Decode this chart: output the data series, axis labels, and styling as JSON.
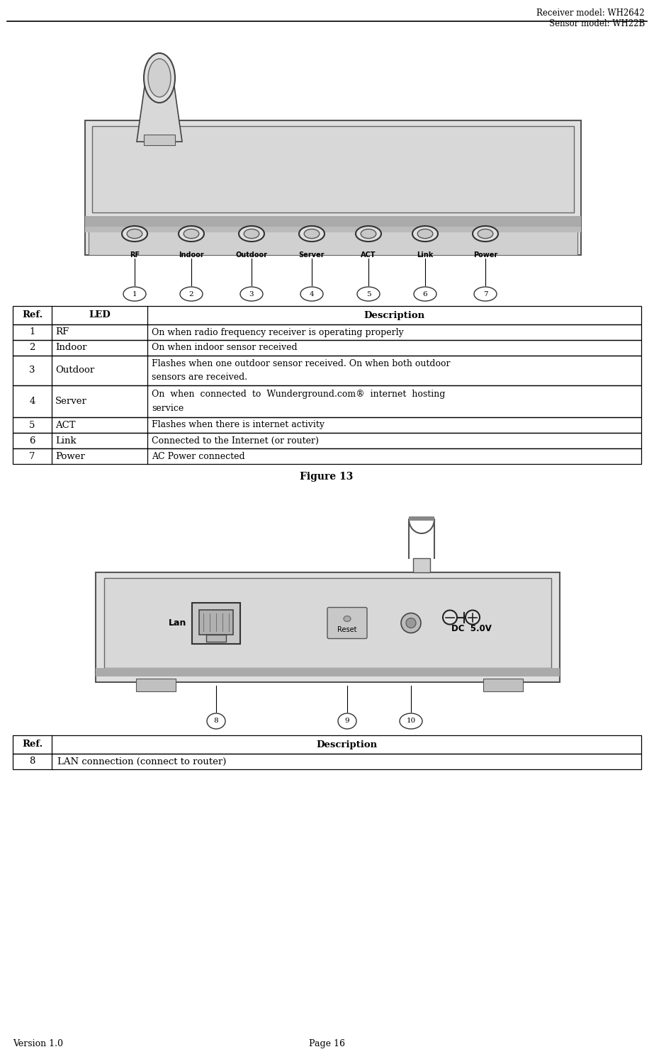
{
  "header_right": "Receiver model: WH2642\nSensor model: WH22B",
  "footer_version": "Version 1.0",
  "footer_page": "Page 16",
  "table1_headers": [
    "Ref.",
    "LED",
    "Description"
  ],
  "table1_rows": [
    [
      "1",
      "RF",
      "On when radio frequency receiver is operating properly"
    ],
    [
      "2",
      "Indoor",
      "On when indoor sensor received"
    ],
    [
      "3",
      "Outdoor",
      "Flashes when one outdoor sensor received. On when both outdoor\nsensors are received."
    ],
    [
      "4",
      "Server",
      "On  when  connected  to  Wunderground.com®  internet  hosting\nservice"
    ],
    [
      "5",
      "ACT",
      "Flashes when there is internet activity"
    ],
    [
      "6",
      "Link",
      "Connected to the Internet (or router)"
    ],
    [
      "7",
      "Power",
      "AC Power connected"
    ]
  ],
  "figure13_label": "Figure 13",
  "table2_headers": [
    "Ref.",
    "Description"
  ],
  "table2_rows": [
    [
      "8",
      "LAN connection (connect to router)"
    ]
  ],
  "bg_color": "#ffffff",
  "text_color": "#000000"
}
